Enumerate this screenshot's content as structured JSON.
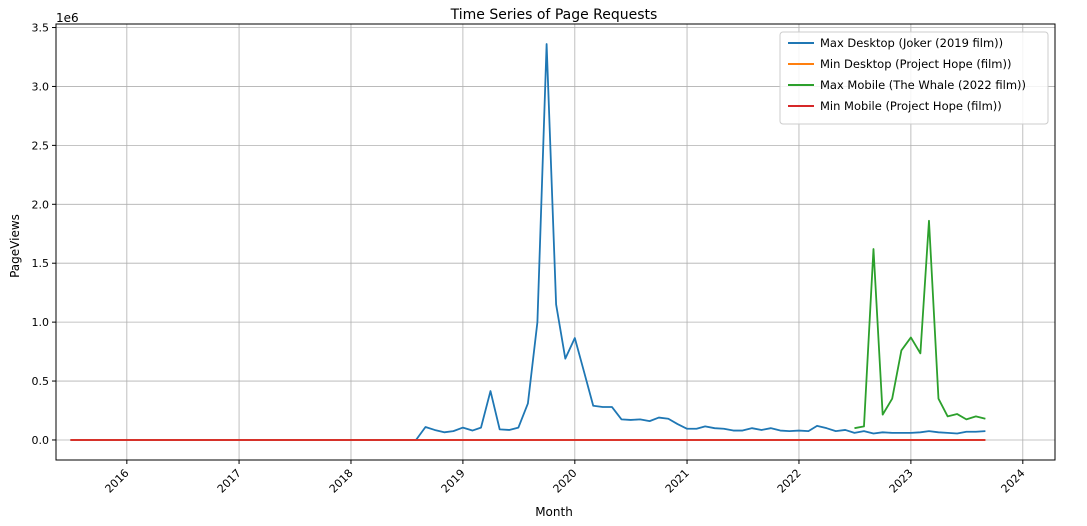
{
  "chart_data": {
    "type": "line",
    "title": "Time Series of Page Requests",
    "xlabel": "Month",
    "ylabel": "PageViews",
    "y_offset_label": "1e6",
    "ylim": [
      -170000,
      3530000
    ],
    "xlim": [
      "2015-05-15",
      "2024-04-15"
    ],
    "y_ticks": [
      0,
      500000,
      1000000,
      1500000,
      2000000,
      2500000,
      3000000,
      3500000
    ],
    "y_tick_labels": [
      "0.0",
      "0.5",
      "1.0",
      "1.5",
      "2.0",
      "2.5",
      "3.0",
      "3.5"
    ],
    "x_ticks": [
      "2016-01-01",
      "2017-01-01",
      "2018-01-01",
      "2019-01-01",
      "2020-01-01",
      "2021-01-01",
      "2022-01-01",
      "2023-01-01",
      "2024-01-01"
    ],
    "x_tick_labels": [
      "2016",
      "2017",
      "2018",
      "2019",
      "2020",
      "2021",
      "2022",
      "2023",
      "2024"
    ],
    "grid": true,
    "legend_position": "top-right",
    "series": [
      {
        "name": "Max Desktop (Joker (2019 film))",
        "color": "#1f77b4",
        "x": [
          "2015-07",
          "2015-08",
          "2015-09",
          "2015-10",
          "2015-11",
          "2015-12",
          "2016-01",
          "2016-02",
          "2016-03",
          "2016-04",
          "2016-05",
          "2016-06",
          "2016-07",
          "2016-08",
          "2016-09",
          "2016-10",
          "2016-11",
          "2016-12",
          "2017-01",
          "2017-02",
          "2017-03",
          "2017-04",
          "2017-05",
          "2017-06",
          "2017-07",
          "2017-08",
          "2017-09",
          "2017-10",
          "2017-11",
          "2017-12",
          "2018-01",
          "2018-02",
          "2018-03",
          "2018-04",
          "2018-05",
          "2018-06",
          "2018-07",
          "2018-08",
          "2018-09",
          "2018-10",
          "2018-11",
          "2018-12",
          "2019-01",
          "2019-02",
          "2019-03",
          "2019-04",
          "2019-05",
          "2019-06",
          "2019-07",
          "2019-08",
          "2019-09",
          "2019-10",
          "2019-11",
          "2019-12",
          "2020-01",
          "2020-02",
          "2020-03",
          "2020-04",
          "2020-05",
          "2020-06",
          "2020-07",
          "2020-08",
          "2020-09",
          "2020-10",
          "2020-11",
          "2020-12",
          "2021-01",
          "2021-02",
          "2021-03",
          "2021-04",
          "2021-05",
          "2021-06",
          "2021-07",
          "2021-08",
          "2021-09",
          "2021-10",
          "2021-11",
          "2021-12",
          "2022-01",
          "2022-02",
          "2022-03",
          "2022-04",
          "2022-05",
          "2022-06",
          "2022-07",
          "2022-08",
          "2022-09",
          "2022-10",
          "2022-11",
          "2022-12",
          "2023-01",
          "2023-02",
          "2023-03",
          "2023-04",
          "2023-05",
          "2023-06",
          "2023-07",
          "2023-08",
          "2023-09"
        ],
        "values": [
          0,
          0,
          0,
          0,
          0,
          0,
          0,
          0,
          0,
          0,
          0,
          0,
          0,
          0,
          0,
          0,
          0,
          0,
          0,
          0,
          0,
          0,
          0,
          0,
          0,
          0,
          0,
          0,
          0,
          0,
          0,
          0,
          0,
          0,
          0,
          0,
          0,
          0,
          110000,
          85000,
          65000,
          75000,
          105000,
          80000,
          105000,
          415000,
          90000,
          85000,
          105000,
          310000,
          1000000,
          3360000,
          1150000,
          690000,
          865000,
          570000,
          290000,
          280000,
          280000,
          175000,
          170000,
          175000,
          160000,
          190000,
          180000,
          135000,
          95000,
          95000,
          115000,
          100000,
          95000,
          80000,
          80000,
          100000,
          85000,
          100000,
          80000,
          75000,
          80000,
          75000,
          120000,
          100000,
          75000,
          85000,
          60000,
          75000,
          55000,
          65000,
          60000,
          60000,
          60000,
          65000,
          75000,
          65000,
          60000,
          55000,
          70000,
          70000,
          75000
        ]
      },
      {
        "name": "Min Desktop (Project Hope (film))",
        "color": "#ff7f0e",
        "x": [
          "2015-07",
          "2023-09"
        ],
        "values": [
          0,
          0
        ]
      },
      {
        "name": "Max Mobile (The Whale (2022 film))",
        "color": "#2ca02c",
        "x": [
          "2022-07",
          "2022-08",
          "2022-09",
          "2022-10",
          "2022-11",
          "2022-12",
          "2023-01",
          "2023-02",
          "2023-03",
          "2023-04",
          "2023-05",
          "2023-06",
          "2023-07",
          "2023-08",
          "2023-09"
        ],
        "values": [
          100000,
          115000,
          1620000,
          215000,
          350000,
          760000,
          870000,
          735000,
          1860000,
          350000,
          200000,
          220000,
          175000,
          200000,
          180000
        ]
      },
      {
        "name": "Min Mobile (Project Hope (film))",
        "color": "#d62728",
        "x": [
          "2015-07",
          "2023-09"
        ],
        "values": [
          0,
          0
        ]
      }
    ]
  }
}
